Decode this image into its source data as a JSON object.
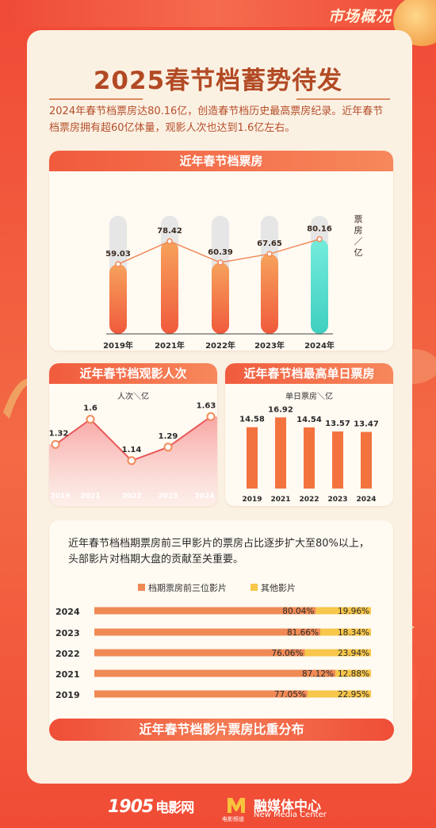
{
  "header": {
    "tag": "市场概况"
  },
  "title": "2025春节档蓄势待发",
  "intro": "2024年春节档票房达80.16亿，创造春节档历史最高票房纪录。近年春节档票房拥有超60亿体量，观影人次也达到1.6亿左右。",
  "colors": {
    "accent": "#f05a3c",
    "bar_orange": "#f3733f",
    "bar_teal": "#5be0d0",
    "share_top3": "#f08a55",
    "share_other": "#f7c64a"
  },
  "chart_data": [
    {
      "type": "bar",
      "title": "近年春节档票房",
      "ylabel": "票房／亿",
      "categories": [
        "2019年",
        "2021年",
        "2022年",
        "2023年",
        "2024年"
      ],
      "values": [
        59.03,
        78.42,
        60.39,
        67.65,
        80.16
      ],
      "value_labels": [
        "59.03",
        "78.42",
        "60.39",
        "67.65",
        "80.16"
      ],
      "ylim": [
        0,
        100
      ],
      "trend_line": true
    },
    {
      "type": "area",
      "title": "近年春节档观影人次",
      "ylabel": "人次＼亿",
      "categories": [
        "2019",
        "2021",
        "2022",
        "2023",
        "2024"
      ],
      "values": [
        1.32,
        1.6,
        1.14,
        1.29,
        1.63
      ],
      "value_labels": [
        "1.32",
        "1.6",
        "1.14",
        "1.29",
        "1.63"
      ]
    },
    {
      "type": "bar",
      "title": "近年春节档最高单日票房",
      "ylabel": "单日票房＼亿",
      "categories": [
        "2019",
        "2021",
        "2022",
        "2023",
        "2024"
      ],
      "values": [
        14.58,
        16.92,
        14.54,
        13.57,
        13.47
      ],
      "value_labels": [
        "14.58",
        "16.92",
        "14.54",
        "13.57",
        "13.47"
      ],
      "ylim": [
        0,
        20
      ]
    },
    {
      "type": "bar",
      "orientation": "horizontal-stacked-percent",
      "title": "近年春节档影片票房比重分布",
      "categories": [
        "2024",
        "2023",
        "2022",
        "2021",
        "2019"
      ],
      "series": [
        {
          "name": "档期票房前三位影片",
          "values": [
            80.04,
            81.66,
            76.06,
            87.12,
            77.05
          ],
          "labels": [
            "80.04%",
            "81.66%",
            "76.06%",
            "87.12%",
            "77.05%"
          ]
        },
        {
          "name": "其他影片",
          "values": [
            19.96,
            18.34,
            23.94,
            12.88,
            22.95
          ],
          "labels": [
            "19.96%",
            "18.34%",
            "23.94%",
            "12.88%",
            "22.95%"
          ]
        }
      ],
      "description": "近年春节档档期票房前三甲影片的票房占比逐步扩大至80%以上，头部影片对档期大盘的贡献至关重要。"
    }
  ],
  "footer": {
    "logo_1905": "1905",
    "logo_1905_cn": "电影网",
    "logo_m_sub": "电影频道",
    "media_cn": "融媒体中心",
    "media_en": "New Media Center"
  }
}
